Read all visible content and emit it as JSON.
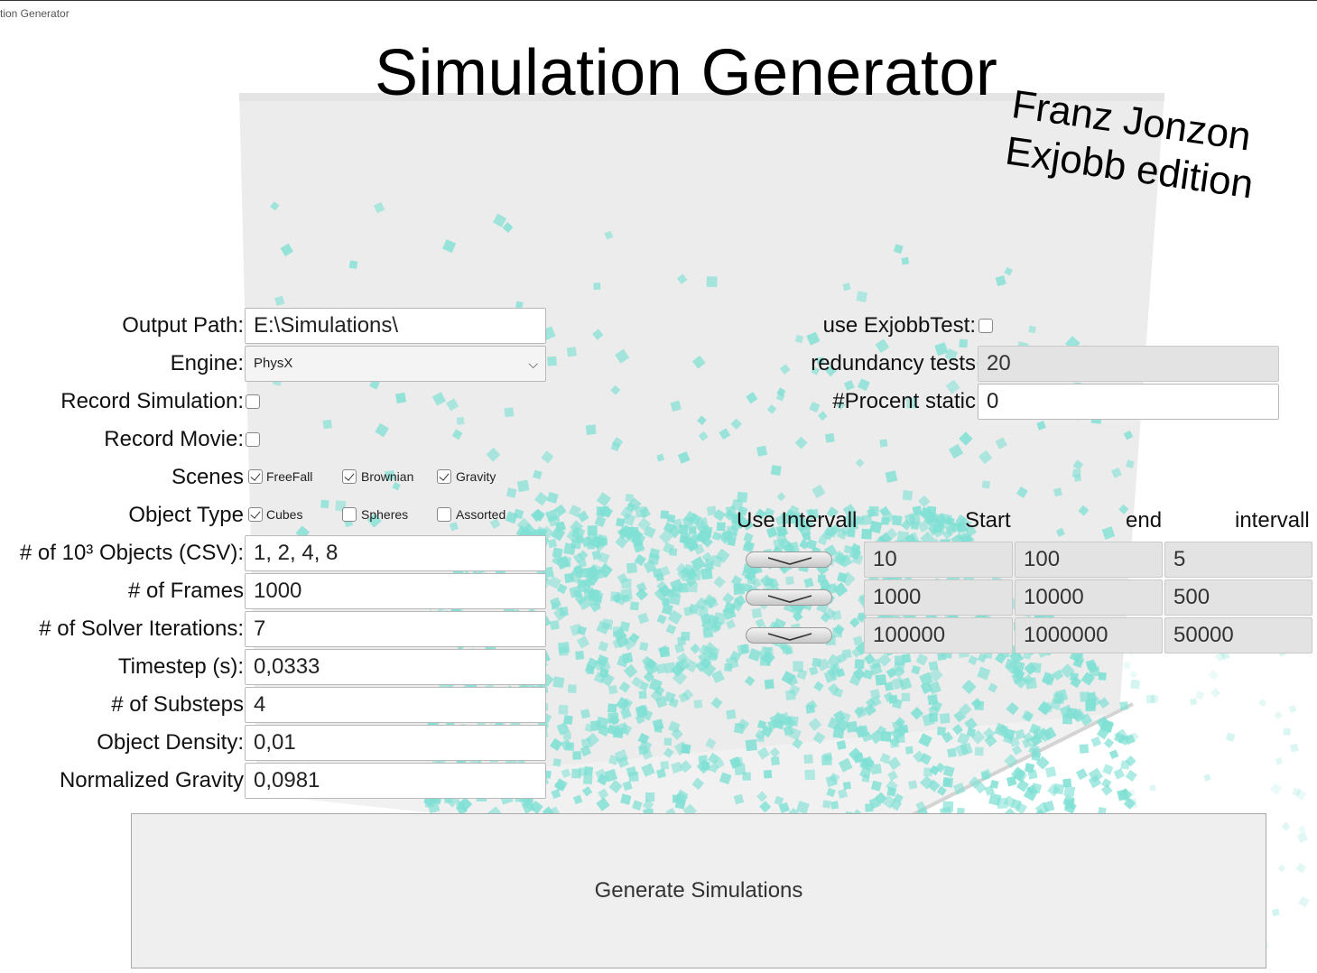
{
  "window": {
    "title": "tion Generator"
  },
  "header": {
    "title": "Simulation Generator",
    "subtitle_line1": "Franz Jonzon",
    "subtitle_line2": "Exjobb edition"
  },
  "form": {
    "output_path_label": "Output Path:",
    "output_path_value": "E:\\Simulations\\",
    "engine_label": "Engine:",
    "engine_value": "PhysX",
    "record_simulation_label": "Record Simulation:",
    "record_simulation_checked": false,
    "record_movie_label": "Record Movie:",
    "record_movie_checked": false,
    "scenes_label": "Scenes",
    "scenes": [
      {
        "label": "FreeFall",
        "checked": true
      },
      {
        "label": "Brownian",
        "checked": true
      },
      {
        "label": "Gravity",
        "checked": true
      }
    ],
    "object_type_label": "Object Type",
    "object_types": [
      {
        "label": "Cubes",
        "checked": true
      },
      {
        "label": "Spheres",
        "checked": false
      },
      {
        "label": "Assorted",
        "checked": false
      }
    ],
    "objects_label": "# of 10³ Objects (CSV):",
    "objects_value": "1, 2, 4, 8",
    "frames_label": "# of Frames",
    "frames_value": "1000",
    "solver_label": "# of Solver Iterations:",
    "solver_value": "7",
    "timestep_label": "Timestep (s):",
    "timestep_value": "0,0333",
    "substeps_label": "# of Substeps",
    "substeps_value": "4",
    "density_label": "Object Density:",
    "density_value": "0,01",
    "gravity_label": "Normalized Gravity",
    "gravity_value": "0,0981"
  },
  "right": {
    "use_exjobbtest_label": "use ExjobbTest:",
    "use_exjobbtest_checked": false,
    "redundancy_label": "redundancy tests",
    "redundancy_value": "20",
    "procent_static_label": "#Procent static",
    "procent_static_value": "0"
  },
  "interval_table": {
    "headers": {
      "use": "Use Intervall",
      "start": "Start",
      "end": "end",
      "interval": "intervall"
    },
    "rows": [
      {
        "start": "10",
        "end": "100",
        "interval": "5"
      },
      {
        "start": "1000",
        "end": "10000",
        "interval": "500"
      },
      {
        "start": "100000",
        "end": "1000000",
        "interval": "50000"
      }
    ]
  },
  "generate_button_label": "Generate Simulations",
  "colors": {
    "cube": "#7fe0d4",
    "panel": "#ececec"
  }
}
